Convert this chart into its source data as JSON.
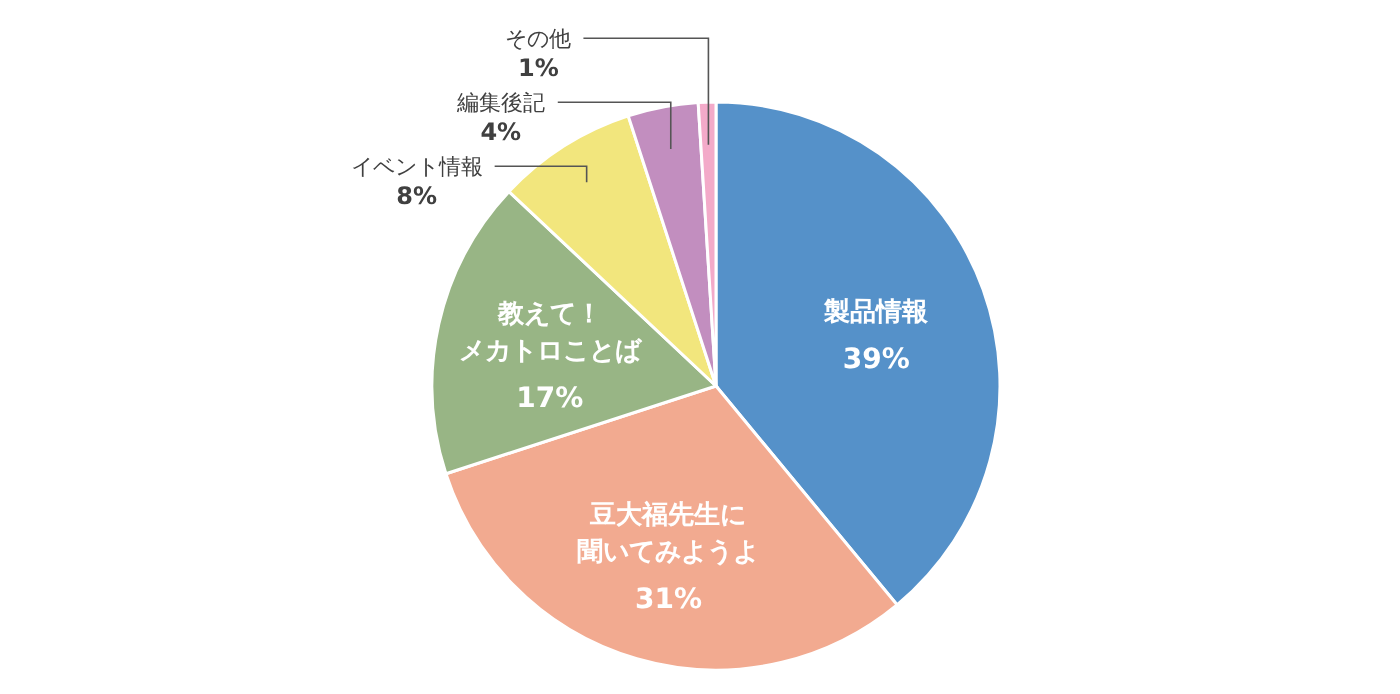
{
  "chart_data": {
    "type": "pie",
    "categories": [
      "製品情報",
      "豆大福先生に聞いてみようよ",
      "教えて！メカトロことば",
      "イベント情報",
      "編集後記",
      "その他"
    ],
    "values": [
      39,
      31,
      17,
      8,
      4,
      1
    ],
    "value_labels": [
      "39%",
      "31%",
      "17%",
      "8%",
      "4%",
      "1%"
    ],
    "colors": [
      "#5591c9",
      "#f2aa90",
      "#98b585",
      "#f2e67d",
      "#c28ebf",
      "#f3aac9"
    ],
    "legend": false
  }
}
